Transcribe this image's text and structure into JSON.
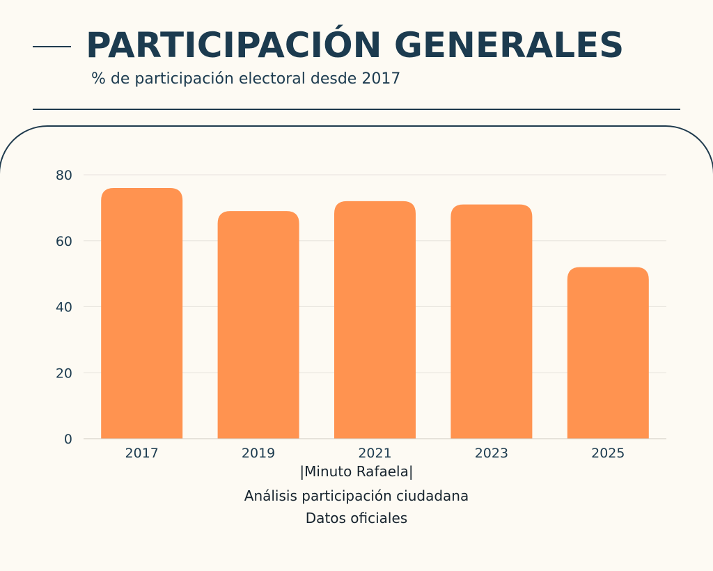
{
  "header": {
    "title": "PARTICIPACIÓN GENERALES",
    "subtitle": "% de participación electoral desde 2017"
  },
  "footer": {
    "line1": "|Minuto Rafaela|",
    "line2": "Análisis participación ciudadana",
    "line3": "Datos oficiales"
  },
  "colors": {
    "bar": "#ff9350",
    "text": "#1c3b4f",
    "grid": "#e6e3dc",
    "background": "#fdfaf3"
  },
  "chart_data": {
    "type": "bar",
    "title": "",
    "xlabel": "",
    "ylabel": "",
    "categories": [
      "2017",
      "2019",
      "2021",
      "2023",
      "2025"
    ],
    "values": [
      76,
      69,
      72,
      71,
      52
    ],
    "ylim": [
      0,
      80
    ],
    "yticks": [
      0,
      20,
      40,
      60,
      80
    ],
    "grid": true,
    "legend": "none"
  }
}
